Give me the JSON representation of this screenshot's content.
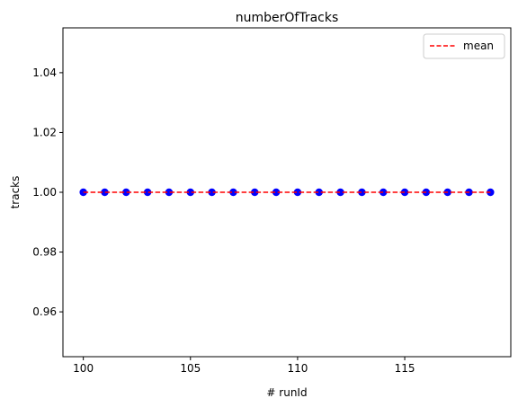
{
  "chart_data": {
    "type": "scatter",
    "title": "numberOfTracks",
    "xlabel": "# runId",
    "ylabel": "tracks",
    "x": [
      100,
      101,
      102,
      103,
      104,
      105,
      106,
      107,
      108,
      109,
      110,
      111,
      112,
      113,
      114,
      115,
      116,
      117,
      118,
      119
    ],
    "series": [
      {
        "values": [
          1,
          1,
          1,
          1,
          1,
          1,
          1,
          1,
          1,
          1,
          1,
          1,
          1,
          1,
          1,
          1,
          1,
          1,
          1,
          1
        ],
        "color": "#0000ff",
        "marker": "circle"
      }
    ],
    "mean_line": {
      "name": "mean",
      "value": 1.0,
      "color": "#ff0000",
      "style": "dashed"
    },
    "xlim": [
      99.05,
      119.95
    ],
    "ylim": [
      0.945,
      1.055
    ],
    "xticks": [
      100,
      105,
      110,
      115
    ],
    "yticks": [
      0.96,
      0.98,
      1.0,
      1.02,
      1.04
    ],
    "xtick_labels": [
      "100",
      "105",
      "110",
      "115"
    ],
    "ytick_labels": [
      "0.96",
      "0.98",
      "1.00",
      "1.02",
      "1.04"
    ],
    "grid": false,
    "legend_position": "top-right"
  }
}
